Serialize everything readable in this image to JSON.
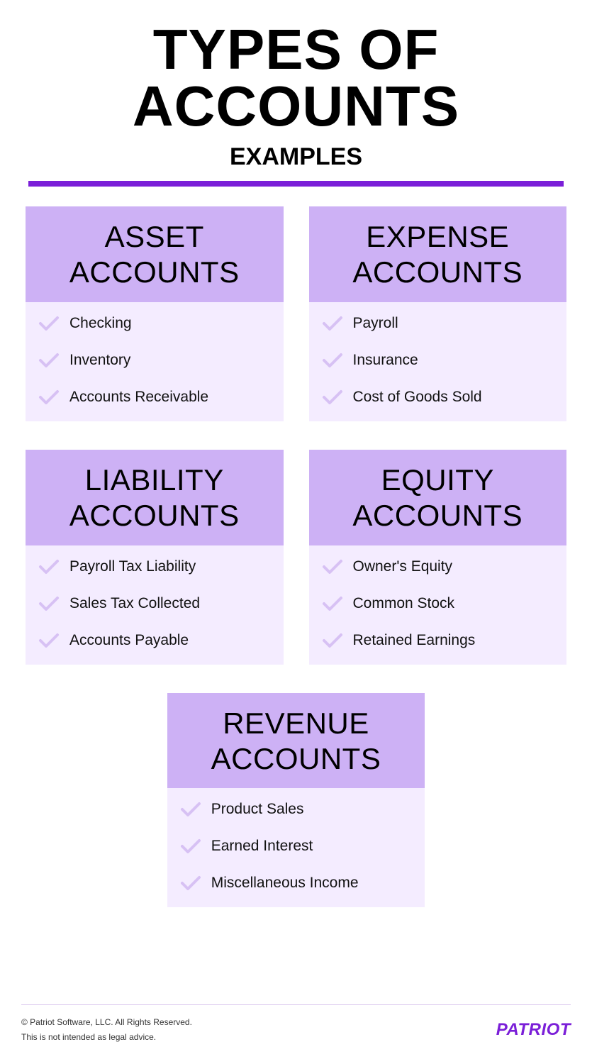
{
  "colors": {
    "accent": "#7b1fd8",
    "header_bg": "#cdb1f5",
    "body_bg": "#f4ecff",
    "check": "#d7c1f4",
    "divider": "#7b1fd8",
    "brand": "#7b1fd8"
  },
  "header": {
    "title": "TYPES OF ACCOUNTS",
    "subtitle": "EXAMPLES"
  },
  "cards": [
    {
      "title_line1": "ASSET",
      "title_line2": "ACCOUNTS",
      "items": [
        "Checking",
        "Inventory",
        "Accounts Receivable"
      ]
    },
    {
      "title_line1": "EXPENSE",
      "title_line2": "ACCOUNTS",
      "items": [
        "Payroll",
        "Insurance",
        "Cost of Goods Sold"
      ]
    },
    {
      "title_line1": "LIABILITY",
      "title_line2": "ACCOUNTS",
      "items": [
        "Payroll Tax Liability",
        "Sales Tax Collected",
        "Accounts Payable"
      ]
    },
    {
      "title_line1": "EQUITY",
      "title_line2": "ACCOUNTS",
      "items": [
        "Owner's Equity",
        "Common Stock",
        "Retained Earnings"
      ]
    },
    {
      "title_line1": "REVENUE",
      "title_line2": "ACCOUNTS",
      "items": [
        "Product Sales",
        "Earned Interest",
        "Miscellaneous Income"
      ]
    }
  ],
  "footer": {
    "copyright": "© Patriot Software, LLC. All Rights Reserved.",
    "disclaimer": "This is not intended as legal advice.",
    "brand": "PATRIOT"
  }
}
